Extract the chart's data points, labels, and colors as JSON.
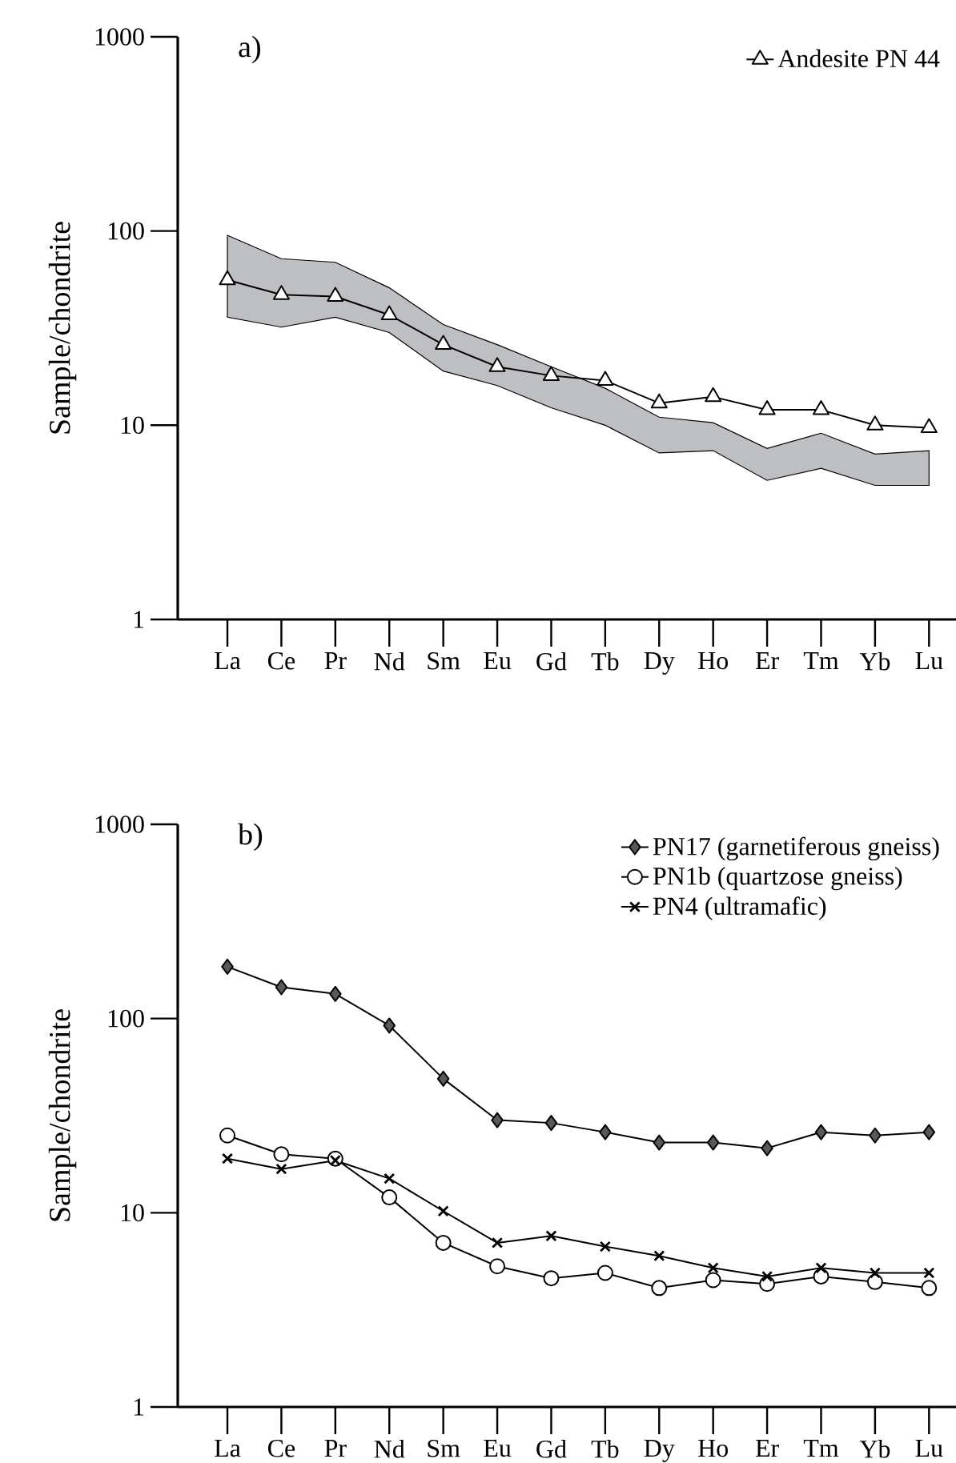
{
  "chart_data": [
    {
      "type": "line",
      "title": "a)",
      "ylabel": "Sample/chondrite",
      "categories": [
        "La",
        "Ce",
        "Pr",
        "Nd",
        "Sm",
        "Eu",
        "Gd",
        "Tb",
        "Dy",
        "Ho",
        "Er",
        "Tm",
        "Yb",
        "Lu"
      ],
      "log": true,
      "ylim": [
        1,
        1000
      ],
      "yticks": [
        1,
        10,
        100,
        1000
      ],
      "legend": "top right",
      "series": [
        {
          "name": "Andesite PN 44",
          "color": "#ffffff",
          "marker": "triangle",
          "values": [
            56,
            47,
            46,
            37,
            26,
            20,
            18,
            17,
            13,
            14,
            12,
            12,
            10,
            9.7
          ],
          "lower": [
            36,
            32,
            36,
            30,
            19,
            16,
            12.3,
            10,
            7.2,
            7.4,
            5.2,
            6,
            4.9,
            4.9
          ],
          "upper": [
            95,
            72,
            69,
            51,
            33,
            26,
            20,
            15.5,
            11,
            10.3,
            7.6,
            9.1,
            7.1,
            7.4
          ]
        }
      ]
    },
    {
      "type": "line",
      "title": "b)",
      "ylabel": "Sample/chondrite",
      "categories": [
        "La",
        "Ce",
        "Pr",
        "Nd",
        "Sm",
        "Eu",
        "Gd",
        "Tb",
        "Dy",
        "Ho",
        "Er",
        "Tm",
        "Yb",
        "Lu"
      ],
      "log": true,
      "ylim": [
        1,
        1000
      ],
      "yticks": [
        1,
        10,
        100,
        1000
      ],
      "legend": "top right",
      "series": [
        {
          "name": "PN17 (garnetiferous gneiss)",
          "color": "#595959",
          "marker": "diamond",
          "values": [
            185,
            145,
            134,
            92,
            49,
            30,
            29,
            26,
            23,
            23,
            21.5,
            26,
            25,
            26
          ]
        },
        {
          "name": "PN1b (quartzose gneiss)",
          "color": "#ffffff",
          "marker": "circle",
          "values": [
            25,
            20,
            19,
            12,
            7,
            5.3,
            4.6,
            4.9,
            4.1,
            4.5,
            4.3,
            4.7,
            4.4,
            4.1
          ]
        },
        {
          "name": "PN4 (ultramafic)",
          "color": "#000000",
          "marker": "cross",
          "values": [
            19,
            16.8,
            18.6,
            15,
            10.2,
            7,
            7.6,
            6.7,
            6,
            5.2,
            4.7,
            5.2,
            4.9,
            4.9
          ]
        }
      ]
    }
  ]
}
